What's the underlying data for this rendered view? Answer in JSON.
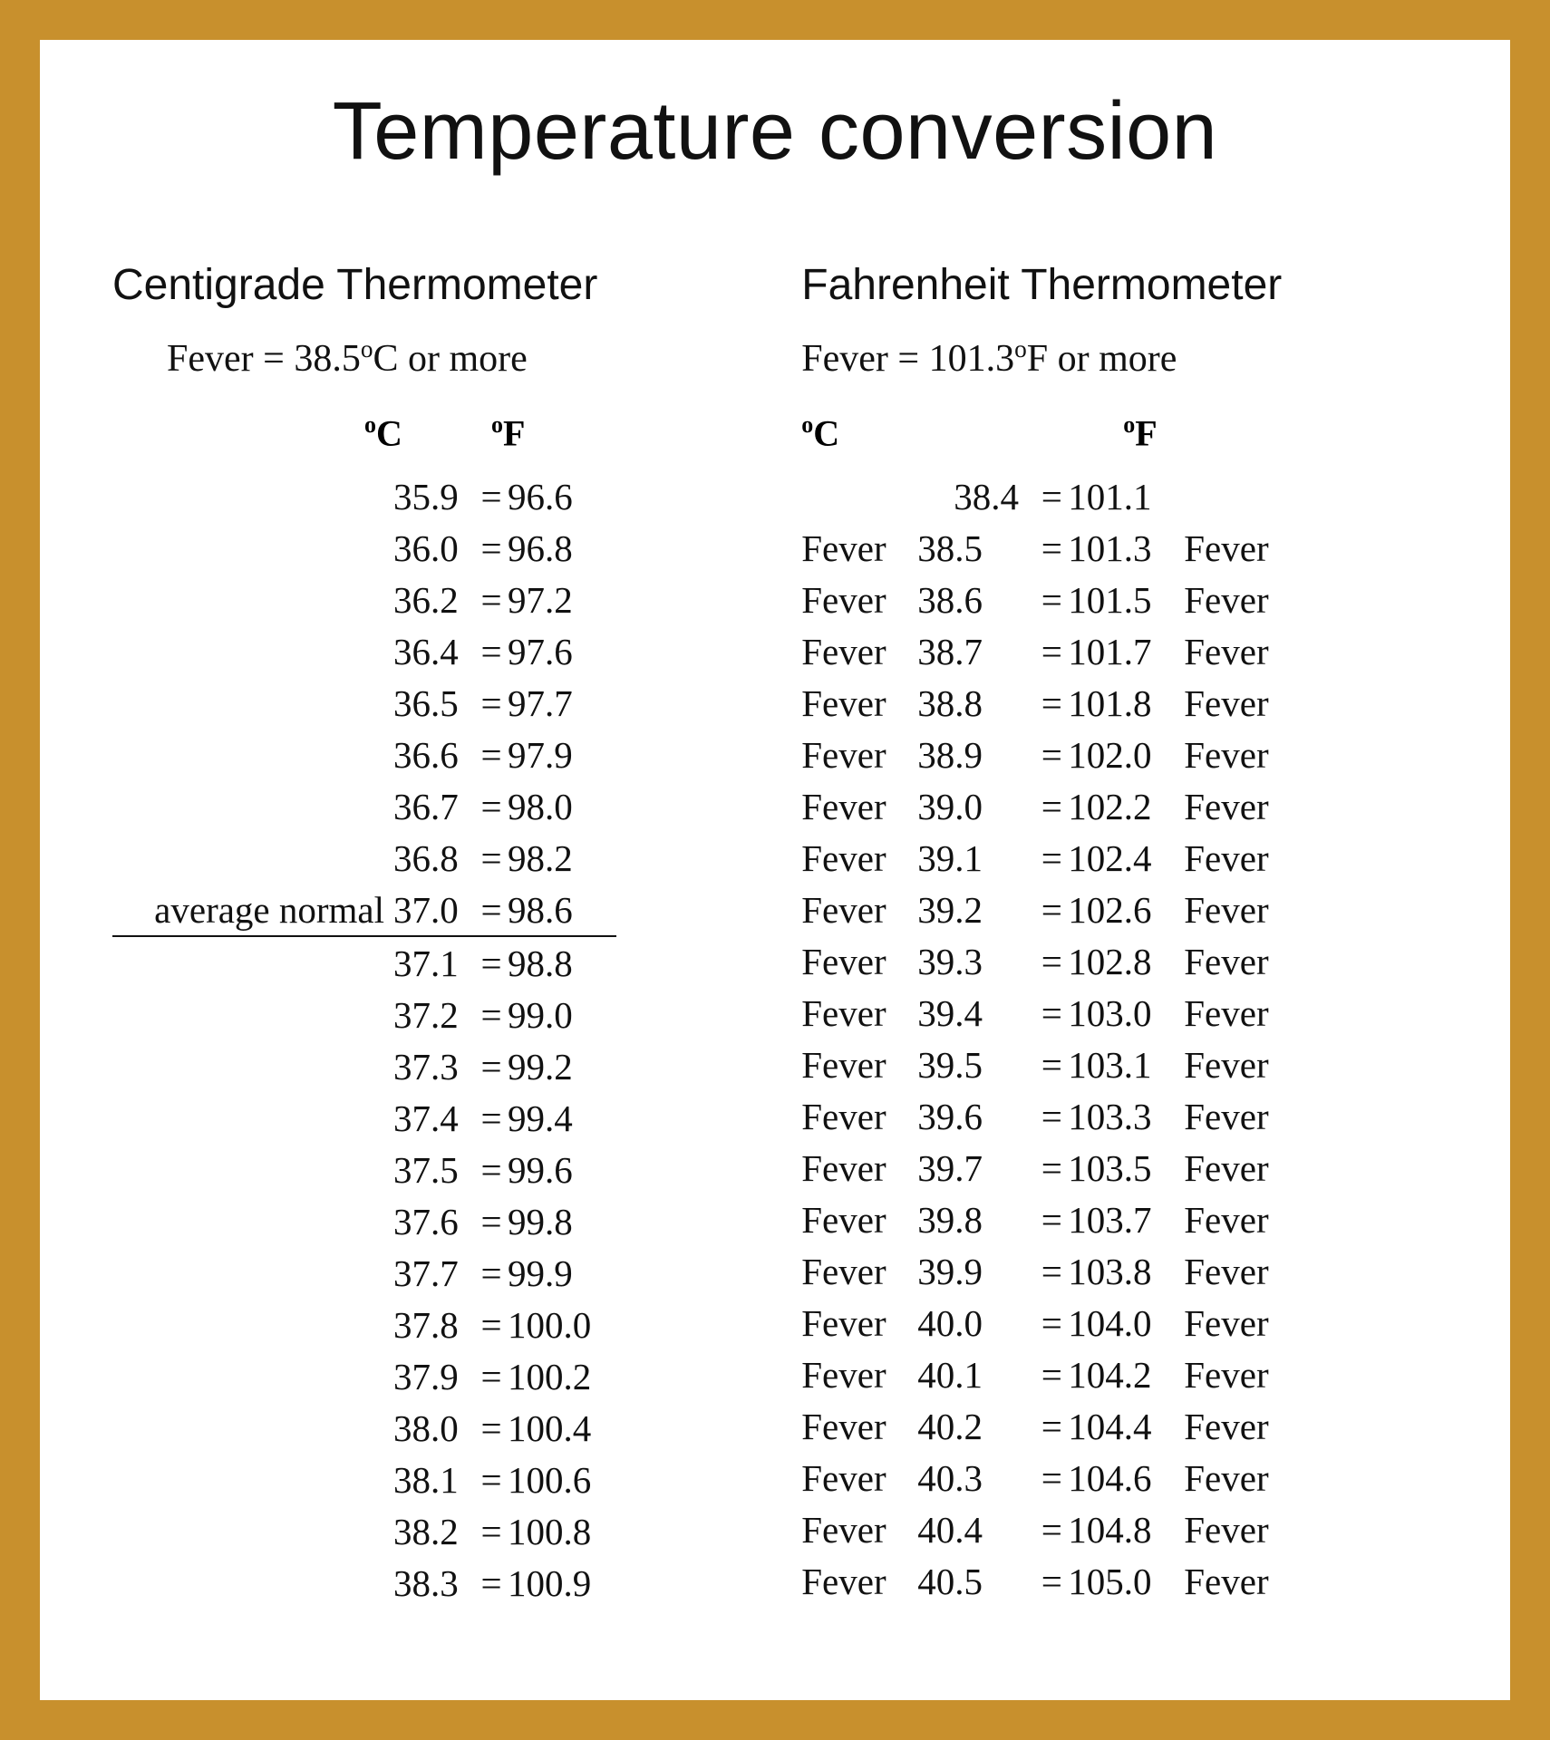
{
  "colors": {
    "border": "#c8902d",
    "page_bg": "#ffffff",
    "text": "#111111"
  },
  "title": "Temperature conversion",
  "left": {
    "heading": "Centigrade Thermometer",
    "fever_note_before": "Fever = 38.5",
    "fever_note_after": "C or more",
    "header_c": "C",
    "header_f": "F",
    "rows": [
      {
        "prefix": "",
        "c": "35.9",
        "f": "96.6",
        "suffix": "",
        "underlined": false,
        "first": false
      },
      {
        "prefix": "",
        "c": "36.0",
        "f": "96.8",
        "suffix": "",
        "underlined": false,
        "first": false
      },
      {
        "prefix": "",
        "c": "36.2",
        "f": "97.2",
        "suffix": "",
        "underlined": false,
        "first": false
      },
      {
        "prefix": "",
        "c": "36.4",
        "f": "97.6",
        "suffix": "",
        "underlined": false,
        "first": false
      },
      {
        "prefix": "",
        "c": "36.5",
        "f": "97.7",
        "suffix": "",
        "underlined": false,
        "first": false
      },
      {
        "prefix": "",
        "c": "36.6",
        "f": "97.9",
        "suffix": "",
        "underlined": false,
        "first": false
      },
      {
        "prefix": "",
        "c": "36.7",
        "f": "98.0",
        "suffix": "",
        "underlined": false,
        "first": false
      },
      {
        "prefix": "",
        "c": "36.8",
        "f": "98.2",
        "suffix": "",
        "underlined": false,
        "first": false
      },
      {
        "prefix": "average normal",
        "c": "37.0",
        "f": "98.6",
        "suffix": "",
        "underlined": true,
        "first": false
      },
      {
        "prefix": "",
        "c": "37.1",
        "f": "98.8",
        "suffix": "",
        "underlined": false,
        "first": false
      },
      {
        "prefix": "",
        "c": "37.2",
        "f": "99.0",
        "suffix": "",
        "underlined": false,
        "first": false
      },
      {
        "prefix": "",
        "c": "37.3",
        "f": "99.2",
        "suffix": "",
        "underlined": false,
        "first": false
      },
      {
        "prefix": "",
        "c": "37.4",
        "f": "99.4",
        "suffix": "",
        "underlined": false,
        "first": false
      },
      {
        "prefix": "",
        "c": "37.5",
        "f": "99.6",
        "suffix": "",
        "underlined": false,
        "first": false
      },
      {
        "prefix": "",
        "c": "37.6",
        "f": "99.8",
        "suffix": "",
        "underlined": false,
        "first": false
      },
      {
        "prefix": "",
        "c": "37.7",
        "f": "99.9",
        "suffix": "",
        "underlined": false,
        "first": false
      },
      {
        "prefix": "",
        "c": "37.8",
        "f": "100.0",
        "suffix": "",
        "underlined": false,
        "first": false
      },
      {
        "prefix": "",
        "c": "37.9",
        "f": "100.2",
        "suffix": "",
        "underlined": false,
        "first": false
      },
      {
        "prefix": "",
        "c": "38.0",
        "f": "100.4",
        "suffix": "",
        "underlined": false,
        "first": false
      },
      {
        "prefix": "",
        "c": "38.1",
        "f": "100.6",
        "suffix": "",
        "underlined": false,
        "first": false
      },
      {
        "prefix": "",
        "c": "38.2",
        "f": "100.8",
        "suffix": "",
        "underlined": false,
        "first": false
      },
      {
        "prefix": "",
        "c": "38.3",
        "f": "100.9",
        "suffix": "",
        "underlined": false,
        "first": false
      }
    ]
  },
  "right": {
    "heading": "Fahrenheit Thermometer",
    "fever_note_before": "Fever = 101.3",
    "fever_note_after": "F or more",
    "header_c": "C",
    "header_f": "F",
    "rows": [
      {
        "prefix": "",
        "c": "38.4",
        "f": "101.1",
        "suffix": "",
        "underlined": false,
        "first": true
      },
      {
        "prefix": "Fever",
        "c": "38.5",
        "f": "101.3",
        "suffix": "Fever",
        "underlined": false,
        "first": false
      },
      {
        "prefix": "Fever",
        "c": "38.6",
        "f": "101.5",
        "suffix": "Fever",
        "underlined": false,
        "first": false
      },
      {
        "prefix": "Fever",
        "c": "38.7",
        "f": "101.7",
        "suffix": "Fever",
        "underlined": false,
        "first": false
      },
      {
        "prefix": "Fever",
        "c": "38.8",
        "f": "101.8",
        "suffix": "Fever",
        "underlined": false,
        "first": false
      },
      {
        "prefix": "Fever",
        "c": "38.9",
        "f": "102.0",
        "suffix": "Fever",
        "underlined": false,
        "first": false
      },
      {
        "prefix": "Fever",
        "c": "39.0",
        "f": "102.2",
        "suffix": "Fever",
        "underlined": false,
        "first": false
      },
      {
        "prefix": "Fever",
        "c": "39.1",
        "f": "102.4",
        "suffix": "Fever",
        "underlined": false,
        "first": false
      },
      {
        "prefix": "Fever",
        "c": "39.2",
        "f": "102.6",
        "suffix": "Fever",
        "underlined": false,
        "first": false
      },
      {
        "prefix": "Fever",
        "c": "39.3",
        "f": "102.8",
        "suffix": "Fever",
        "underlined": false,
        "first": false
      },
      {
        "prefix": "Fever",
        "c": "39.4",
        "f": "103.0",
        "suffix": "Fever",
        "underlined": false,
        "first": false
      },
      {
        "prefix": "Fever",
        "c": "39.5",
        "f": "103.1",
        "suffix": "Fever",
        "underlined": false,
        "first": false
      },
      {
        "prefix": "Fever",
        "c": "39.6",
        "f": "103.3",
        "suffix": "Fever",
        "underlined": false,
        "first": false
      },
      {
        "prefix": "Fever",
        "c": "39.7",
        "f": "103.5",
        "suffix": "Fever",
        "underlined": false,
        "first": false
      },
      {
        "prefix": "Fever",
        "c": "39.8",
        "f": "103.7",
        "suffix": "Fever",
        "underlined": false,
        "first": false
      },
      {
        "prefix": "Fever",
        "c": "39.9",
        "f": "103.8",
        "suffix": "Fever",
        "underlined": false,
        "first": false
      },
      {
        "prefix": "Fever",
        "c": "40.0",
        "f": "104.0",
        "suffix": "Fever",
        "underlined": false,
        "first": false
      },
      {
        "prefix": "Fever",
        "c": "40.1",
        "f": "104.2",
        "suffix": "Fever",
        "underlined": false,
        "first": false
      },
      {
        "prefix": "Fever",
        "c": "40.2",
        "f": "104.4",
        "suffix": "Fever",
        "underlined": false,
        "first": false
      },
      {
        "prefix": "Fever",
        "c": "40.3",
        "f": "104.6",
        "suffix": "Fever",
        "underlined": false,
        "first": false
      },
      {
        "prefix": "Fever",
        "c": "40.4",
        "f": "104.8",
        "suffix": "Fever",
        "underlined": false,
        "first": false
      },
      {
        "prefix": "Fever",
        "c": "40.5",
        "f": "105.0",
        "suffix": "Fever",
        "underlined": false,
        "first": false
      }
    ]
  }
}
